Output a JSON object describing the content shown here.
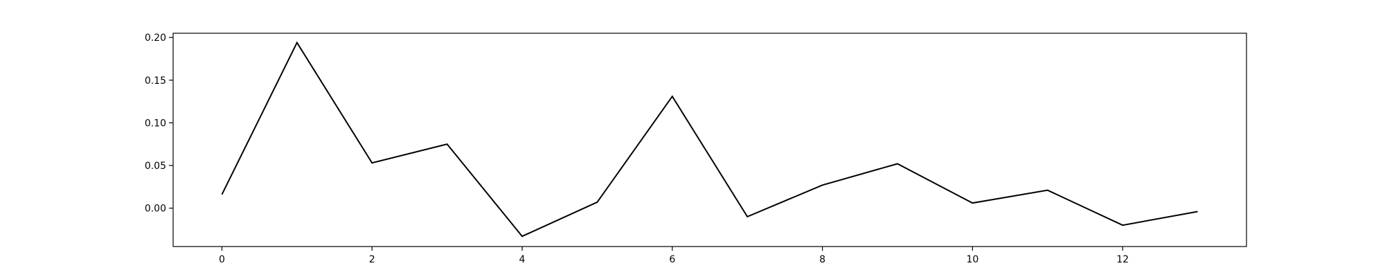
{
  "chart_data": {
    "type": "line",
    "title": "",
    "xlabel": "",
    "ylabel": "",
    "grid": false,
    "legend": "none",
    "xlim": [
      -0.65,
      13.65
    ],
    "ylim": [
      -0.045,
      0.205
    ],
    "x_ticks": [
      0,
      2,
      4,
      6,
      8,
      10,
      12
    ],
    "x_tick_labels": [
      "0",
      "2",
      "4",
      "6",
      "8",
      "10",
      "12"
    ],
    "y_ticks": [
      0.0,
      0.05,
      0.1,
      0.15,
      0.2
    ],
    "y_tick_labels": [
      "0.00",
      "0.05",
      "0.10",
      "0.15",
      "0.20"
    ],
    "series": [
      {
        "color": "#000000",
        "x": [
          0,
          1,
          2,
          3,
          4,
          5,
          6,
          7,
          8,
          9,
          10,
          11,
          12,
          13
        ],
        "y": [
          0.016,
          0.194,
          0.053,
          0.075,
          -0.033,
          0.007,
          0.131,
          -0.01,
          0.027,
          0.052,
          0.006,
          0.021,
          -0.02,
          -0.004
        ]
      }
    ]
  }
}
